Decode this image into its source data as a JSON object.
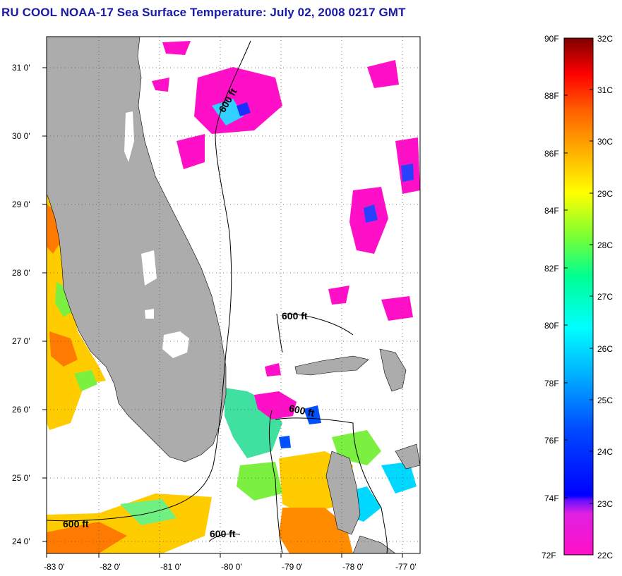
{
  "title": "RU COOL  NOAA-17  Sea Surface Temperature:  July 02, 2008 0217 GMT",
  "map": {
    "lon_range": [
      -83.0,
      -76.8
    ],
    "lat_range": [
      23.85,
      31.4
    ],
    "lon_ticks": [
      "-83 0'",
      "-82 0'",
      "-81 0'",
      "-80 0'",
      "-79 0'",
      "-78 0'",
      "-77 0'"
    ],
    "lat_ticks": [
      "31 0'",
      "30 0'",
      "29 0'",
      "28 0'",
      "27 0'",
      "26 0'",
      "25 0'",
      "24 0'"
    ],
    "grid": "dotted",
    "isobath_labels": [
      "600 ft",
      "600 ft",
      "600 ft",
      "600 ft",
      "600 ft"
    ],
    "colors": {
      "land": "#acacac",
      "no_data": "#ffffff",
      "isobath": "#000000"
    }
  },
  "colorbar": {
    "fahrenheit_labels": [
      "90F",
      "88F",
      "86F",
      "84F",
      "82F",
      "80F",
      "78F",
      "76F",
      "74F",
      "72F"
    ],
    "celsius_labels": [
      "32C",
      "31C",
      "30C",
      "29C",
      "28C",
      "27C",
      "26C",
      "25C",
      "24C",
      "23C",
      "22C"
    ],
    "range_c": [
      22,
      32
    ],
    "colors_low_to_high": [
      "#ff10c8",
      "#b000ff",
      "#0000ff",
      "#00b0ff",
      "#00ffff",
      "#00ff70",
      "#b0ff00",
      "#ffff00",
      "#ff9000",
      "#ff0000",
      "#800000"
    ]
  }
}
